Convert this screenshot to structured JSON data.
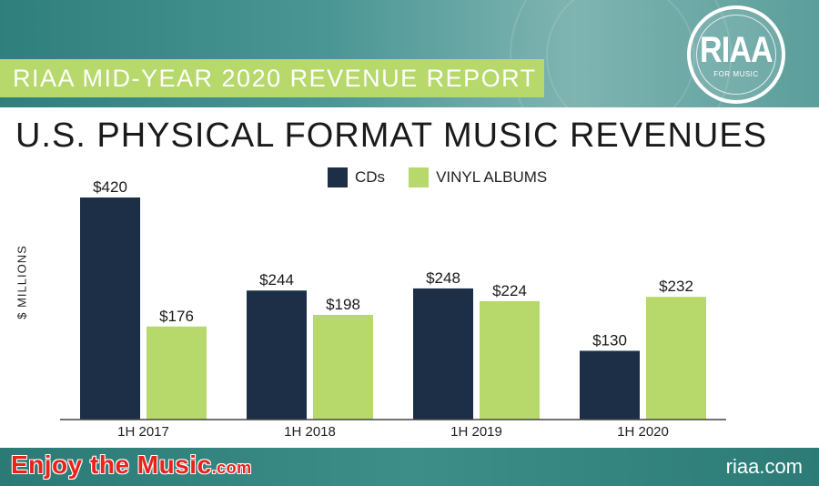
{
  "banner": {
    "text": "RIAA MID-YEAR 2020 REVENUE REPORT"
  },
  "logo": {
    "text": "RIAA",
    "subtitle": "FOR MUSIC"
  },
  "footer": {
    "brand": "Enjoy the Music",
    "brand_suffix": ".com",
    "site": "riaa.com"
  },
  "colors": {
    "cds": "#1c2f47",
    "vinyl": "#b7d86a",
    "banner": "#b7d86a",
    "band": "#2f7f7c"
  },
  "chart_data": {
    "type": "bar",
    "title": "U.S. PHYSICAL FORMAT MUSIC REVENUES",
    "ylabel": "$ MILLIONS",
    "xlabel": "",
    "categories": [
      "1H 2017",
      "1H 2018",
      "1H 2019",
      "1H 2020"
    ],
    "series": [
      {
        "name": "CDs",
        "values": [
          420,
          244,
          248,
          130
        ],
        "labels": [
          "$420",
          "$244",
          "$248",
          "$130"
        ]
      },
      {
        "name": "VINYL ALBUMS",
        "values": [
          176,
          198,
          224,
          232
        ],
        "labels": [
          "$176",
          "$198",
          "$224",
          "$232"
        ]
      }
    ],
    "ylim": [
      0,
      420
    ],
    "grid": false,
    "legend": "top-center"
  }
}
